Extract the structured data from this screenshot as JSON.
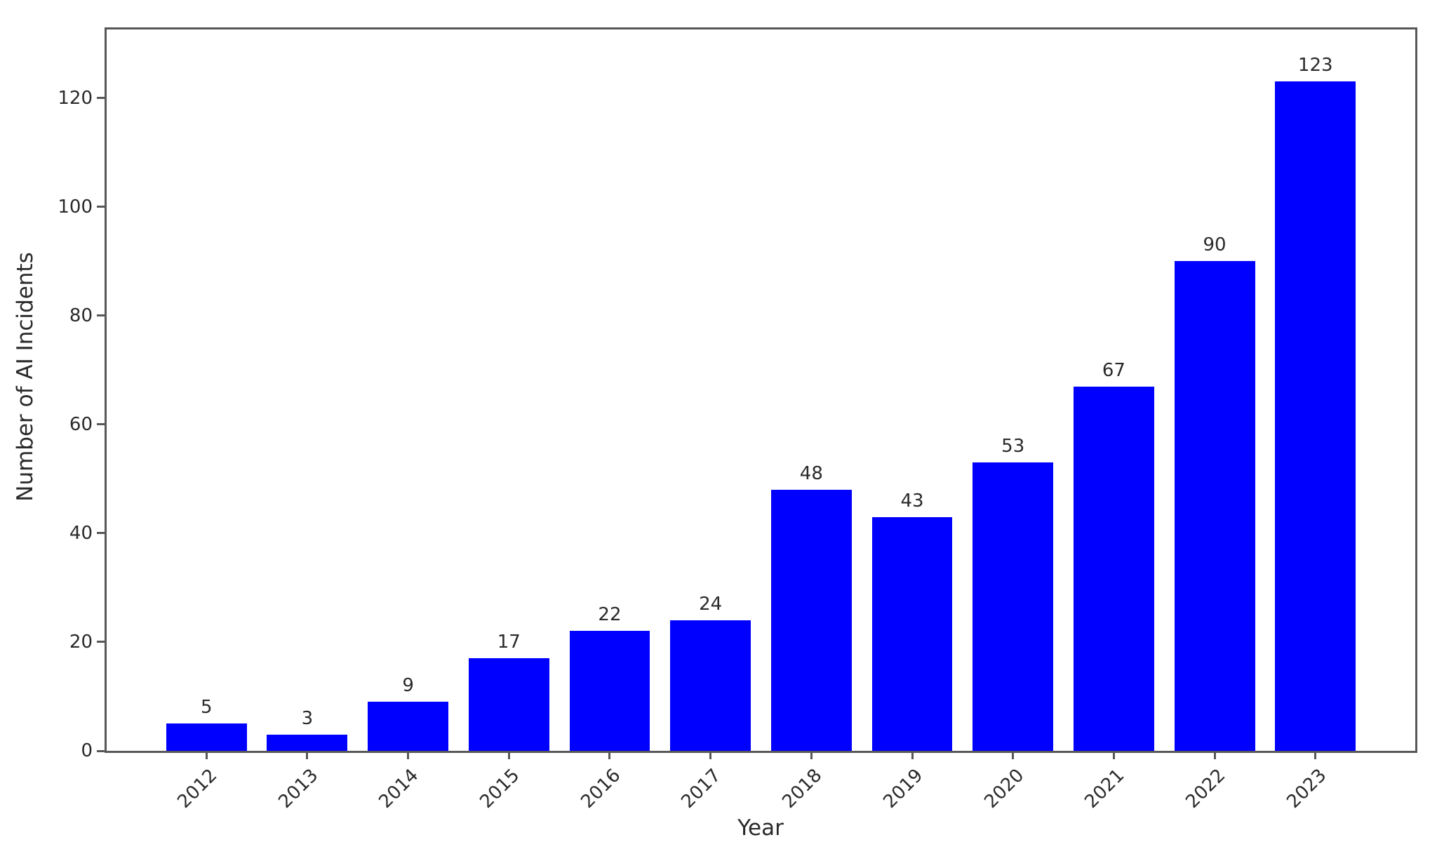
{
  "chart_data": {
    "type": "bar",
    "title": "",
    "xlabel": "Year",
    "ylabel": "Number of AI Incidents",
    "categories": [
      "2012",
      "2013",
      "2014",
      "2015",
      "2016",
      "2017",
      "2018",
      "2019",
      "2020",
      "2021",
      "2022",
      "2023"
    ],
    "values": [
      5,
      3,
      9,
      17,
      22,
      24,
      48,
      43,
      53,
      67,
      90,
      123
    ],
    "bar_labels": [
      "5",
      "3",
      "9",
      "17",
      "22",
      "24",
      "48",
      "43",
      "53",
      "67",
      "90",
      "123"
    ],
    "bar_color": "#0000ff",
    "axis_color": "#58585a",
    "text_color": "#2a2a2a",
    "yticks": [
      0,
      20,
      40,
      60,
      80,
      100,
      120
    ],
    "ylim": [
      0,
      132.6
    ],
    "grid": false,
    "legend": null
  }
}
